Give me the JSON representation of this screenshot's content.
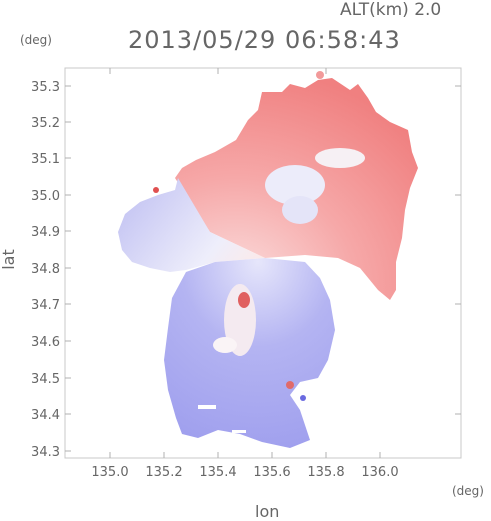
{
  "header": {
    "altitude": "ALT(km) 2.0",
    "timestamp": "2013/05/29 06:58:43"
  },
  "axes": {
    "y_unit": "(deg)",
    "x_unit": "(deg)",
    "y_label": "lat",
    "x_label": "lon",
    "y_ticks": [
      "35.3",
      "35.2",
      "35.1",
      "35.0",
      "34.9",
      "34.8",
      "34.7",
      "34.6",
      "34.5",
      "34.4",
      "34.3"
    ],
    "x_ticks": [
      "135.0",
      "135.2",
      "135.4",
      "135.6",
      "135.8",
      "136.0"
    ]
  },
  "colors": {
    "receding": "#f07070",
    "approaching": "#8080f0",
    "frame": "#c8c8c8"
  }
}
